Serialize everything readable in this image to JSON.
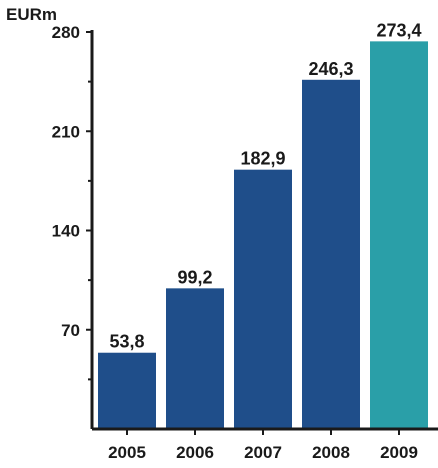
{
  "chart_data": {
    "type": "bar",
    "unit_label": "EURm",
    "categories": [
      "2005",
      "2006",
      "2007",
      "2008",
      "2009"
    ],
    "values": [
      53.8,
      99.2,
      182.9,
      246.3,
      273.4
    ],
    "value_labels": [
      "53,8",
      "99,2",
      "182,9",
      "246,3",
      "273,4"
    ],
    "ylim": [
      0,
      280
    ],
    "yticks": [
      70,
      140,
      210,
      280
    ],
    "ytick_labels": [
      "70",
      "140",
      "210",
      "280"
    ],
    "grid": false,
    "legend": "none",
    "colors": {
      "default_bar": "#1f4e8a",
      "highlight_bar": "#2a9fa8",
      "axis": "#1a1a1a"
    },
    "highlight_index": 4
  }
}
